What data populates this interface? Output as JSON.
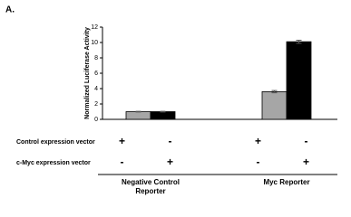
{
  "panel_label": "A.",
  "chart_data": {
    "type": "bar",
    "ylabel": "Normalized Luciferase Activity",
    "categories": [
      "Negative Control Reporter",
      "Myc Reporter"
    ],
    "series": [
      {
        "color": "#a6a6a6",
        "values": [
          1.0,
          3.6
        ],
        "errors": [
          0.05,
          0.15
        ]
      },
      {
        "color": "#000000",
        "values": [
          1.0,
          10.1
        ],
        "errors": [
          0.05,
          0.2
        ]
      }
    ],
    "ylim": [
      0,
      12
    ],
    "yticks": [
      0,
      2,
      4,
      6,
      8,
      10,
      12
    ],
    "conditions": [
      {
        "label": "Control expression vector",
        "signs": [
          [
            "+",
            "-"
          ],
          [
            "+",
            "-"
          ]
        ]
      },
      {
        "label": "c-Myc expression vector",
        "signs": [
          [
            "-",
            "+"
          ],
          [
            "-",
            "+"
          ]
        ]
      }
    ]
  }
}
